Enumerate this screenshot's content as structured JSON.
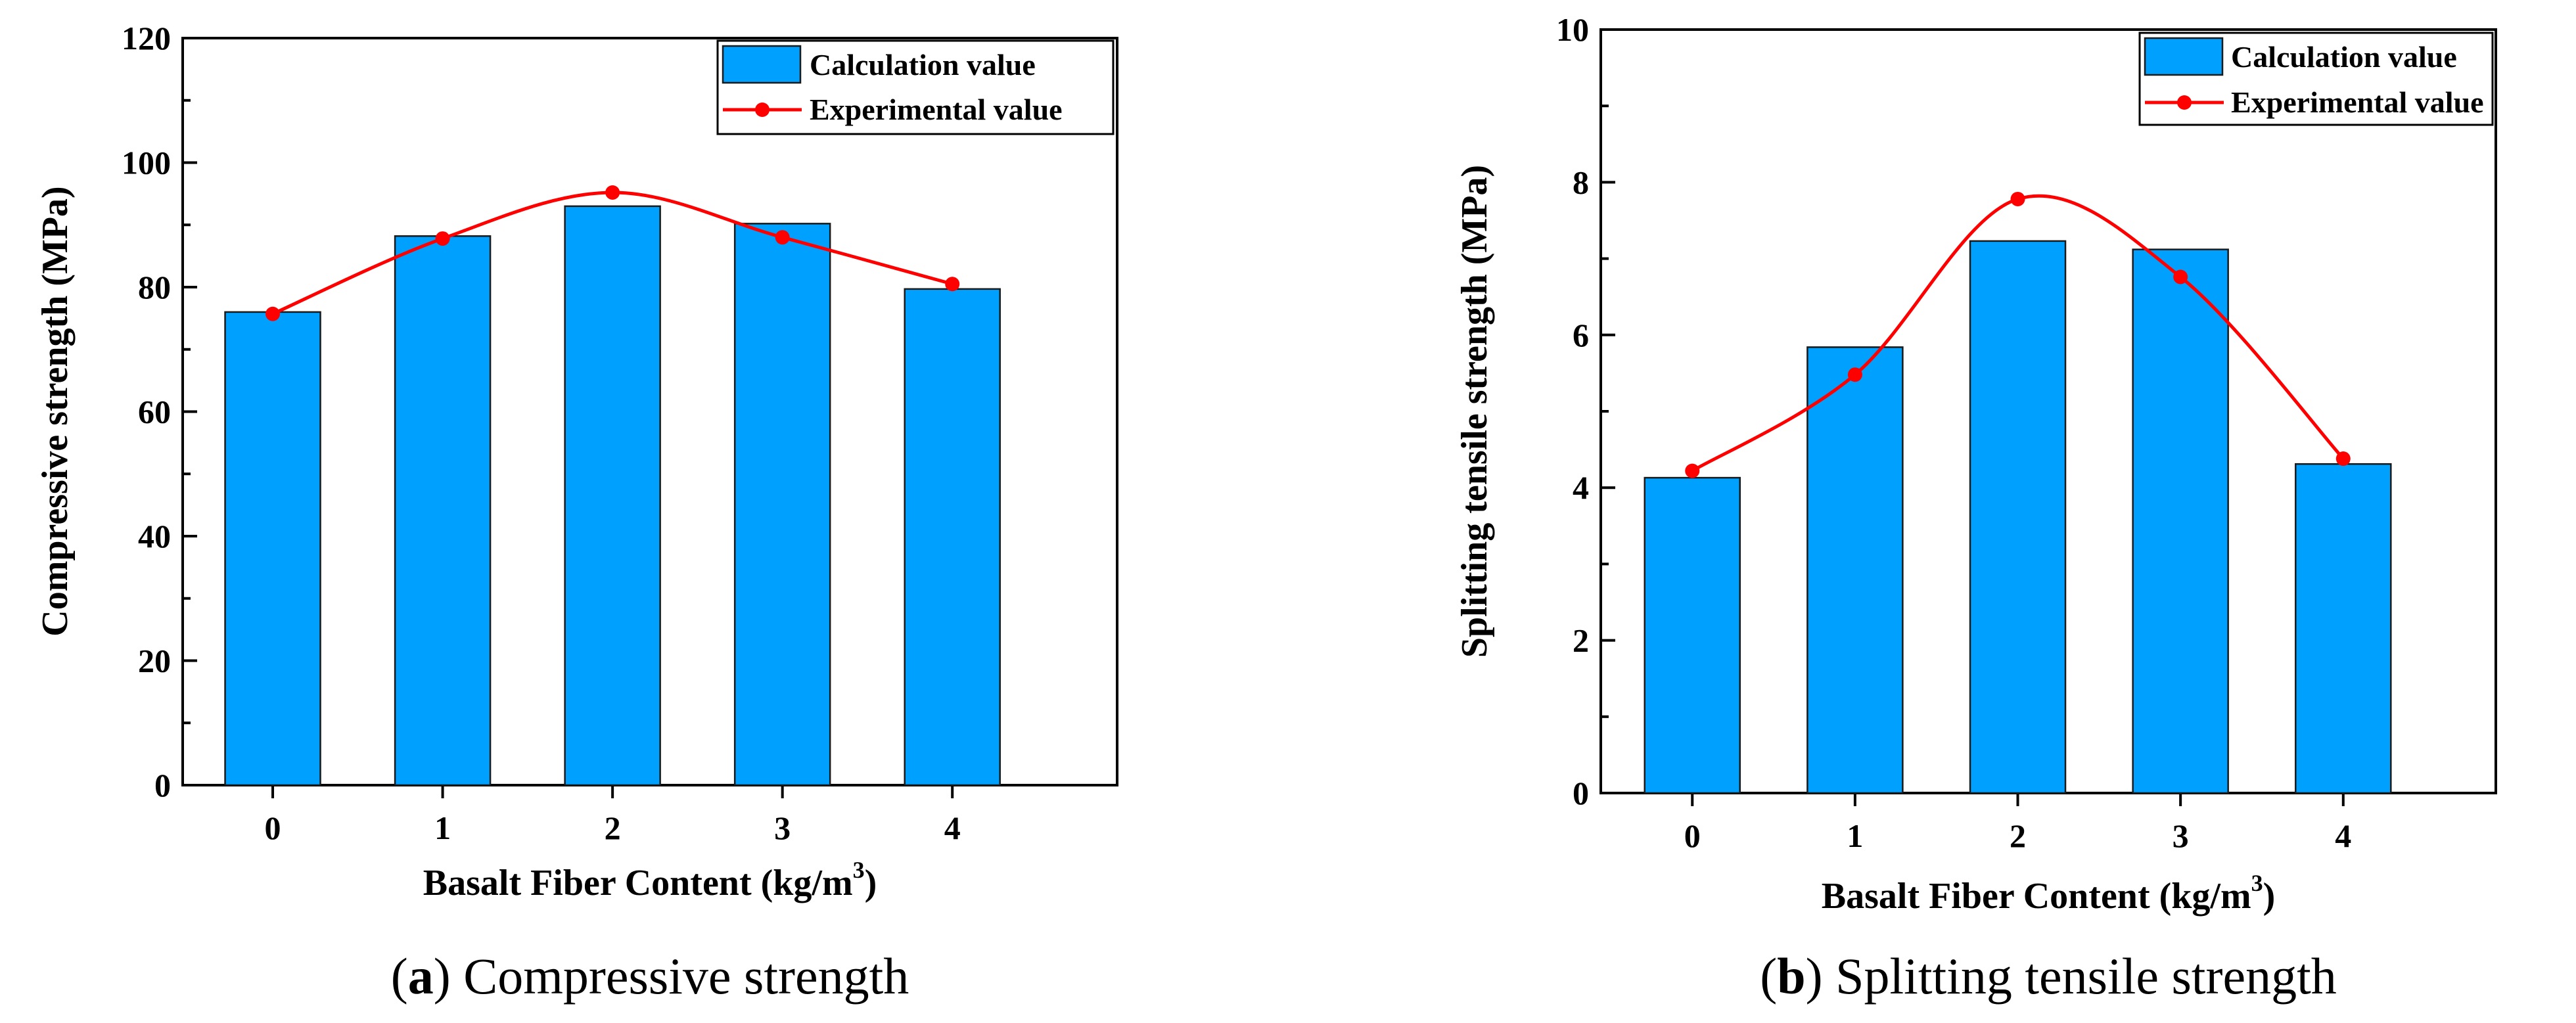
{
  "chart_data": [
    {
      "type": "bar",
      "title": "",
      "categories": [
        "0",
        "1",
        "2",
        "3",
        "4"
      ],
      "xlabel": "Basalt Fiber Content (kg/m",
      "xlabel_sup": "3",
      "xlabel_end": ")",
      "ylabel": "Compressive strength (MPa)",
      "ylim": [
        0,
        120
      ],
      "yticks": [
        0,
        20,
        40,
        60,
        80,
        100,
        120
      ],
      "series": [
        {
          "name": "Calculation value",
          "kind": "bar",
          "color": "#00A0FF",
          "values": [
            76,
            88.2,
            93,
            90.2,
            79.7
          ]
        },
        {
          "name": "Experimental value",
          "kind": "line",
          "color": "#FF0000",
          "values": [
            75.7,
            87.8,
            95.2,
            88,
            80.5
          ]
        }
      ],
      "legend": "top-right",
      "caption_letter": "a",
      "caption_text": " Compressive strength"
    },
    {
      "type": "bar",
      "title": "",
      "categories": [
        "0",
        "1",
        "2",
        "3",
        "4"
      ],
      "xlabel": "Basalt Fiber Content (kg/m",
      "xlabel_sup": "3",
      "xlabel_end": ")",
      "ylabel": "Splitting tensile strength (MPa)",
      "ylim": [
        0,
        10
      ],
      "yticks": [
        0,
        2,
        4,
        6,
        8,
        10
      ],
      "series": [
        {
          "name": "Calculation value",
          "kind": "bar",
          "color": "#00A0FF",
          "values": [
            4.13,
            5.84,
            7.23,
            7.12,
            4.31
          ]
        },
        {
          "name": "Experimental value",
          "kind": "line",
          "color": "#FF0000",
          "values": [
            4.22,
            5.48,
            7.78,
            6.76,
            4.38
          ]
        }
      ],
      "legend": "top-right",
      "caption_letter": "b",
      "caption_text": " Splitting tensile strength"
    }
  ]
}
